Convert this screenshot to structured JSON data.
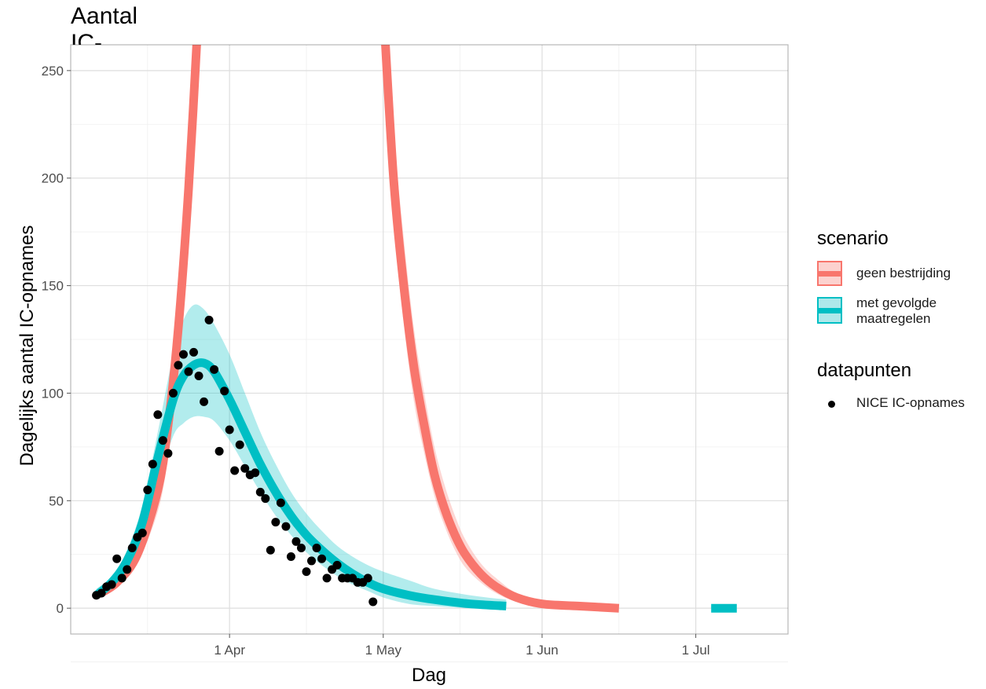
{
  "chart_data": {
    "type": "line",
    "title": "Aantal IC-opnames per dag",
    "xlabel": "Dag",
    "ylabel": "Dagelijks aantal IC-opnames",
    "x_axis": {
      "type": "date",
      "range": [
        "2020-03-01",
        "2020-07-19"
      ],
      "ticks": [
        {
          "date": "2020-04-01",
          "label": "1 Apr"
        },
        {
          "date": "2020-05-01",
          "label": "1 May"
        },
        {
          "date": "2020-06-01",
          "label": "1 Jun"
        },
        {
          "date": "2020-07-01",
          "label": "1 Jul"
        }
      ],
      "minor_ticks": [
        "2020-03-16",
        "2020-04-16",
        "2020-05-16",
        "2020-06-16"
      ]
    },
    "y_axis": {
      "range": [
        -12,
        262
      ],
      "ticks": [
        0,
        50,
        100,
        150,
        200,
        250
      ]
    },
    "grid": true,
    "legend_position": "right",
    "legends": [
      {
        "title": "scenario",
        "items": [
          {
            "label": "geen bestrijding",
            "color": "#f8766d"
          },
          {
            "label": "met gevolgde\n maatregelen",
            "color": "#00bfc4"
          }
        ]
      },
      {
        "title": "datapunten",
        "items": [
          {
            "label": "NICE IC-opnames",
            "color": "#000000"
          }
        ]
      }
    ],
    "series": [
      {
        "name": "geen bestrijding",
        "color": "#f8766d",
        "points": [
          {
            "x": "2020-03-06",
            "y": 6,
            "lo": 5,
            "hi": 7
          },
          {
            "x": "2020-03-10",
            "y": 12,
            "lo": 10,
            "hi": 14
          },
          {
            "x": "2020-03-14",
            "y": 25,
            "lo": 21,
            "hi": 29
          },
          {
            "x": "2020-03-18",
            "y": 55,
            "lo": 45,
            "hi": 65
          },
          {
            "x": "2020-03-20",
            "y": 85,
            "lo": 70,
            "hi": 100
          },
          {
            "x": "2020-03-22",
            "y": 130,
            "lo": 110,
            "hi": 150
          },
          {
            "x": "2020-03-24",
            "y": 195,
            "lo": 170,
            "hi": 220
          },
          {
            "x": "2020-03-26",
            "y": 280,
            "lo": 250,
            "hi": 310
          },
          {
            "x": "2020-05-01",
            "y": 280,
            "lo": 250,
            "hi": 310
          },
          {
            "x": "2020-05-03",
            "y": 200,
            "lo": 180,
            "hi": 225
          },
          {
            "x": "2020-05-05",
            "y": 150,
            "lo": 132,
            "hi": 172
          },
          {
            "x": "2020-05-07",
            "y": 112,
            "lo": 96,
            "hi": 130
          },
          {
            "x": "2020-05-09",
            "y": 85,
            "lo": 72,
            "hi": 100
          },
          {
            "x": "2020-05-11",
            "y": 62,
            "lo": 52,
            "hi": 75
          },
          {
            "x": "2020-05-13",
            "y": 46,
            "lo": 38,
            "hi": 57
          },
          {
            "x": "2020-05-15",
            "y": 34,
            "lo": 27,
            "hi": 43
          },
          {
            "x": "2020-05-17",
            "y": 25,
            "lo": 19,
            "hi": 32
          },
          {
            "x": "2020-05-20",
            "y": 16,
            "lo": 12,
            "hi": 21
          },
          {
            "x": "2020-05-23",
            "y": 10,
            "lo": 7,
            "hi": 14
          },
          {
            "x": "2020-05-27",
            "y": 5,
            "lo": 3,
            "hi": 7
          },
          {
            "x": "2020-06-01",
            "y": 2,
            "lo": 1,
            "hi": 3
          },
          {
            "x": "2020-06-08",
            "y": 1,
            "lo": 0,
            "hi": 1
          },
          {
            "x": "2020-06-16",
            "y": 0,
            "lo": 0,
            "hi": 0
          }
        ]
      },
      {
        "name": "met gevolgde maatregelen",
        "color": "#00bfc4",
        "points": [
          {
            "x": "2020-03-06",
            "y": 6,
            "lo": 4,
            "hi": 9
          },
          {
            "x": "2020-03-09",
            "y": 12,
            "lo": 9,
            "hi": 15
          },
          {
            "x": "2020-03-12",
            "y": 22,
            "lo": 18,
            "hi": 27
          },
          {
            "x": "2020-03-15",
            "y": 40,
            "lo": 32,
            "hi": 48
          },
          {
            "x": "2020-03-18",
            "y": 70,
            "lo": 58,
            "hi": 82
          },
          {
            "x": "2020-03-21",
            "y": 97,
            "lo": 80,
            "hi": 118
          },
          {
            "x": "2020-03-23",
            "y": 108,
            "lo": 86,
            "hi": 134
          },
          {
            "x": "2020-03-25",
            "y": 113,
            "lo": 89,
            "hi": 141
          },
          {
            "x": "2020-03-27",
            "y": 114,
            "lo": 89,
            "hi": 139
          },
          {
            "x": "2020-03-29",
            "y": 110,
            "lo": 87,
            "hi": 132
          },
          {
            "x": "2020-04-01",
            "y": 97,
            "lo": 78,
            "hi": 118
          },
          {
            "x": "2020-04-04",
            "y": 82,
            "lo": 66,
            "hi": 100
          },
          {
            "x": "2020-04-07",
            "y": 67,
            "lo": 54,
            "hi": 82
          },
          {
            "x": "2020-04-10",
            "y": 54,
            "lo": 43,
            "hi": 67
          },
          {
            "x": "2020-04-13",
            "y": 43,
            "lo": 34,
            "hi": 54
          },
          {
            "x": "2020-04-16",
            "y": 34,
            "lo": 26,
            "hi": 44
          },
          {
            "x": "2020-04-19",
            "y": 27,
            "lo": 20,
            "hi": 36
          },
          {
            "x": "2020-04-22",
            "y": 21,
            "lo": 15,
            "hi": 29
          },
          {
            "x": "2020-04-25",
            "y": 16,
            "lo": 11,
            "hi": 24
          },
          {
            "x": "2020-04-28",
            "y": 12,
            "lo": 8,
            "hi": 20
          },
          {
            "x": "2020-05-01",
            "y": 9,
            "lo": 5,
            "hi": 17
          },
          {
            "x": "2020-05-06",
            "y": 6,
            "lo": 2,
            "hi": 13
          },
          {
            "x": "2020-05-11",
            "y": 4,
            "lo": 1,
            "hi": 9
          },
          {
            "x": "2020-05-18",
            "y": 2,
            "lo": 0,
            "hi": 6
          },
          {
            "x": "2020-05-25",
            "y": 1,
            "lo": 0,
            "hi": 4
          },
          {
            "x": "2020-06-05",
            "y": 0,
            "lo": 0,
            "hi": 3
          },
          {
            "x": "2020-06-20",
            "y": 0,
            "lo": 0,
            "hi": 2
          },
          {
            "x": "2020-07-04",
            "y": 0,
            "lo": 0,
            "hi": 1
          },
          {
            "x": "2020-07-09",
            "y": 0,
            "lo": 0,
            "hi": 0
          }
        ]
      }
    ],
    "datapoints": {
      "name": "NICE IC-opnames",
      "color": "#000000",
      "points": [
        {
          "x": "2020-03-06",
          "y": 6
        },
        {
          "x": "2020-03-07",
          "y": 7
        },
        {
          "x": "2020-03-08",
          "y": 10
        },
        {
          "x": "2020-03-09",
          "y": 11
        },
        {
          "x": "2020-03-10",
          "y": 23
        },
        {
          "x": "2020-03-11",
          "y": 14
        },
        {
          "x": "2020-03-12",
          "y": 18
        },
        {
          "x": "2020-03-13",
          "y": 28
        },
        {
          "x": "2020-03-14",
          "y": 33
        },
        {
          "x": "2020-03-15",
          "y": 35
        },
        {
          "x": "2020-03-16",
          "y": 55
        },
        {
          "x": "2020-03-17",
          "y": 67
        },
        {
          "x": "2020-03-18",
          "y": 90
        },
        {
          "x": "2020-03-19",
          "y": 78
        },
        {
          "x": "2020-03-20",
          "y": 72
        },
        {
          "x": "2020-03-21",
          "y": 100
        },
        {
          "x": "2020-03-22",
          "y": 113
        },
        {
          "x": "2020-03-23",
          "y": 118
        },
        {
          "x": "2020-03-24",
          "y": 110
        },
        {
          "x": "2020-03-25",
          "y": 119
        },
        {
          "x": "2020-03-26",
          "y": 108
        },
        {
          "x": "2020-03-27",
          "y": 96
        },
        {
          "x": "2020-03-28",
          "y": 134
        },
        {
          "x": "2020-03-29",
          "y": 111
        },
        {
          "x": "2020-03-30",
          "y": 73
        },
        {
          "x": "2020-03-31",
          "y": 101
        },
        {
          "x": "2020-04-01",
          "y": 83
        },
        {
          "x": "2020-04-02",
          "y": 64
        },
        {
          "x": "2020-04-03",
          "y": 76
        },
        {
          "x": "2020-04-04",
          "y": 65
        },
        {
          "x": "2020-04-05",
          "y": 62
        },
        {
          "x": "2020-04-06",
          "y": 63
        },
        {
          "x": "2020-04-07",
          "y": 54
        },
        {
          "x": "2020-04-08",
          "y": 51
        },
        {
          "x": "2020-04-09",
          "y": 27
        },
        {
          "x": "2020-04-10",
          "y": 40
        },
        {
          "x": "2020-04-11",
          "y": 49
        },
        {
          "x": "2020-04-12",
          "y": 38
        },
        {
          "x": "2020-04-13",
          "y": 24
        },
        {
          "x": "2020-04-14",
          "y": 31
        },
        {
          "x": "2020-04-15",
          "y": 28
        },
        {
          "x": "2020-04-16",
          "y": 17
        },
        {
          "x": "2020-04-17",
          "y": 22
        },
        {
          "x": "2020-04-18",
          "y": 28
        },
        {
          "x": "2020-04-19",
          "y": 23
        },
        {
          "x": "2020-04-20",
          "y": 14
        },
        {
          "x": "2020-04-21",
          "y": 18
        },
        {
          "x": "2020-04-22",
          "y": 20
        },
        {
          "x": "2020-04-23",
          "y": 14
        },
        {
          "x": "2020-04-24",
          "y": 14
        },
        {
          "x": "2020-04-25",
          "y": 14
        },
        {
          "x": "2020-04-26",
          "y": 12
        },
        {
          "x": "2020-04-27",
          "y": 12
        },
        {
          "x": "2020-04-28",
          "y": 14
        },
        {
          "x": "2020-04-29",
          "y": 3
        }
      ]
    }
  }
}
